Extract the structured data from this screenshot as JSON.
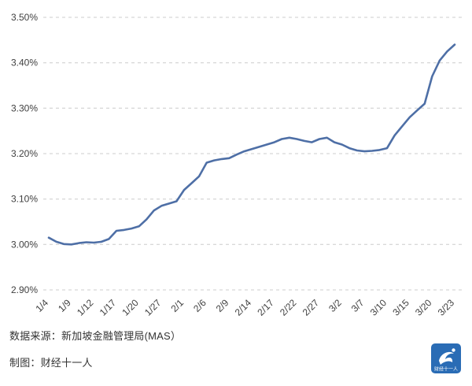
{
  "chart_data": {
    "type": "line",
    "title": "",
    "xlabel": "",
    "ylabel": "",
    "ylim": [
      2.9,
      3.5
    ],
    "grid": "dashed-horizontal",
    "grid_color": "#cccccc",
    "line_color": "#4e6fa6",
    "y_tick_values": [
      3.5,
      3.4,
      3.3,
      3.2,
      3.1,
      3.0,
      2.9
    ],
    "y_tick_labels": [
      "3.50%",
      "3.40%",
      "3.30%",
      "3.20%",
      "3.10%",
      "3.00%",
      "2.90%"
    ],
    "x_tick_labels": [
      "1/4",
      "1/9",
      "1/12",
      "1/17",
      "1/20",
      "1/27",
      "2/1",
      "2/6",
      "2/9",
      "2/14",
      "2/17",
      "2/22",
      "2/27",
      "3/2",
      "3/7",
      "3/10",
      "3/15",
      "3/20",
      "3/23"
    ],
    "x_tick_indices": [
      0,
      3,
      6,
      9,
      12,
      15,
      18,
      21,
      24,
      27,
      30,
      33,
      36,
      39,
      42,
      45,
      48,
      51,
      54
    ],
    "values": [
      3.015,
      3.006,
      3.001,
      3.0,
      3.003,
      3.005,
      3.004,
      3.006,
      3.012,
      3.03,
      3.032,
      3.035,
      3.04,
      3.055,
      3.075,
      3.085,
      3.09,
      3.095,
      3.12,
      3.135,
      3.15,
      3.18,
      3.185,
      3.188,
      3.19,
      3.198,
      3.205,
      3.21,
      3.215,
      3.22,
      3.225,
      3.232,
      3.235,
      3.232,
      3.228,
      3.225,
      3.232,
      3.235,
      3.225,
      3.22,
      3.212,
      3.207,
      3.205,
      3.206,
      3.208,
      3.212,
      3.24,
      3.26,
      3.28,
      3.295,
      3.31,
      3.37,
      3.405,
      3.425,
      3.44
    ],
    "legend": []
  },
  "footer": {
    "source_label": "数据来源：新加坡金融管理局(MAS）",
    "credit_label": "制图：财经十一人",
    "logo_text": "财经十一人",
    "logo_color": "#2a6cb5"
  }
}
